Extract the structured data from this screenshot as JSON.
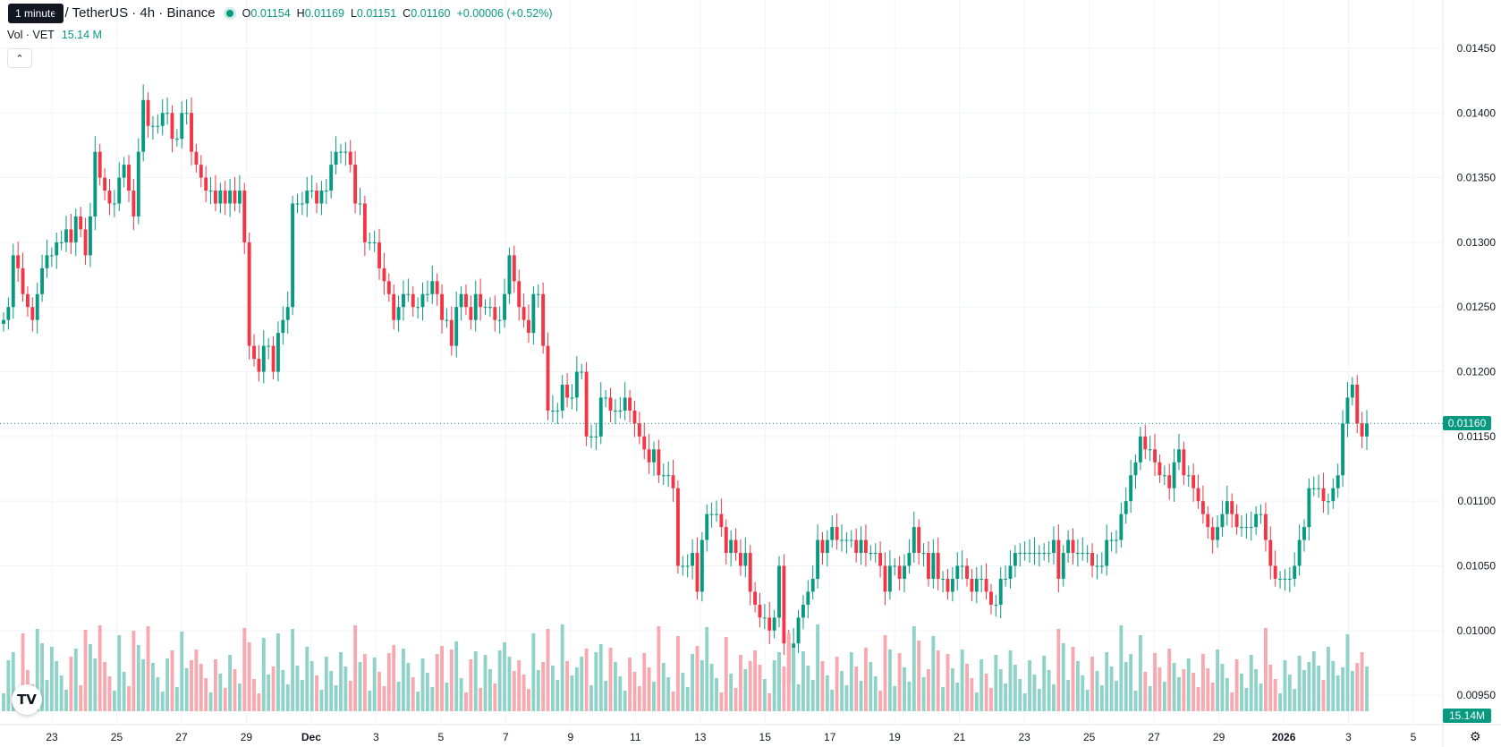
{
  "header": {
    "symbol_title": "n / TetherUS · 4h · Binance",
    "open_label": "O",
    "open": "0.01154",
    "high_label": "H",
    "high": "0.01169",
    "low_label": "L",
    "low": "0.01151",
    "close_label": "C",
    "close": "0.01160",
    "change": "+0.00006 (+0.52%)"
  },
  "tooltip": "1 minute",
  "volume_legend": {
    "label": "Vol · VET",
    "value": "15.14 M"
  },
  "collapse_icon": "chevron-up-icon",
  "logo_text": "TV",
  "settings_icon": "gear-icon",
  "last_price_tag": "0.01160",
  "last_volume_tag": "15.14M",
  "colors": {
    "up": "#089981",
    "down": "#f23645",
    "up_volume": "#8fd3c8",
    "down_volume": "#f7a9af"
  },
  "chart_data": {
    "type": "candlestick",
    "price_axis_ticks": [
      "0.01450",
      "0.01400",
      "0.01350",
      "0.01300",
      "0.01250",
      "0.01200",
      "0.01150",
      "0.01100",
      "0.01050",
      "0.01000",
      "0.00950"
    ],
    "time_axis_labels": [
      "23",
      "25",
      "27",
      "29",
      "Dec",
      "3",
      "5",
      "7",
      "9",
      "11",
      "13",
      "15",
      "17",
      "19",
      "21",
      "23",
      "25",
      "27",
      "29",
      "2026",
      "3",
      "5"
    ],
    "ylim": [
      0.0091,
      0.0147
    ],
    "last_price": 0.0116,
    "grid": true,
    "closes": [
      0.0124,
      0.0125,
      0.0129,
      0.0128,
      0.0126,
      0.0125,
      0.0124,
      0.0126,
      0.0128,
      0.0129,
      0.0129,
      0.013,
      0.013,
      0.0131,
      0.013,
      0.0132,
      0.0131,
      0.0129,
      0.0132,
      0.0137,
      0.0135,
      0.0134,
      0.0133,
      0.0133,
      0.0135,
      0.0136,
      0.0134,
      0.0132,
      0.0137,
      0.0141,
      0.0139,
      0.0139,
      0.0139,
      0.014,
      0.014,
      0.0138,
      0.0138,
      0.014,
      0.014,
      0.0137,
      0.0136,
      0.0135,
      0.0134,
      0.0134,
      0.0133,
      0.0134,
      0.0133,
      0.0134,
      0.0133,
      0.0134,
      0.013,
      0.0122,
      0.0121,
      0.012,
      0.0122,
      0.0122,
      0.012,
      0.0123,
      0.0124,
      0.0125,
      0.0133,
      0.0133,
      0.0133,
      0.0134,
      0.0134,
      0.0133,
      0.0134,
      0.0134,
      0.0136,
      0.0137,
      0.0137,
      0.0137,
      0.0136,
      0.0133,
      0.0133,
      0.013,
      0.013,
      0.013,
      0.0128,
      0.0127,
      0.0126,
      0.0124,
      0.0125,
      0.0126,
      0.0126,
      0.0125,
      0.0125,
      0.0126,
      0.0126,
      0.0127,
      0.0126,
      0.0124,
      0.0124,
      0.0122,
      0.0125,
      0.0126,
      0.0125,
      0.0124,
      0.0126,
      0.0125,
      0.0125,
      0.0125,
      0.0124,
      0.0124,
      0.0126,
      0.0129,
      0.0127,
      0.0125,
      0.0124,
      0.0123,
      0.0126,
      0.0126,
      0.0122,
      0.0117,
      0.0117,
      0.0117,
      0.0119,
      0.0118,
      0.0118,
      0.012,
      0.012,
      0.0115,
      0.0115,
      0.0115,
      0.0118,
      0.0118,
      0.0117,
      0.0117,
      0.0117,
      0.0118,
      0.0117,
      0.0116,
      0.0115,
      0.0114,
      0.0113,
      0.0114,
      0.0112,
      0.0112,
      0.0112,
      0.0111,
      0.0105,
      0.0105,
      0.0105,
      0.0106,
      0.0103,
      0.0107,
      0.0109,
      0.0109,
      0.0109,
      0.0108,
      0.0106,
      0.0107,
      0.0106,
      0.0105,
      0.0106,
      0.0103,
      0.0102,
      0.0101,
      0.0101,
      0.01,
      0.0101,
      0.0105,
      0.0099,
      0.0096,
      0.0099,
      0.0101,
      0.0102,
      0.0103,
      0.0104,
      0.0107,
      0.0106,
      0.0107,
      0.0108,
      0.0107,
      0.0107,
      0.0107,
      0.0107,
      0.0106,
      0.0107,
      0.0106,
      0.0106,
      0.0106,
      0.0105,
      0.0103,
      0.0105,
      0.0105,
      0.0104,
      0.0105,
      0.0106,
      0.0108,
      0.0106,
      0.0106,
      0.0104,
      0.0106,
      0.0104,
      0.0104,
      0.0103,
      0.0104,
      0.0105,
      0.0105,
      0.0104,
      0.0103,
      0.0104,
      0.0104,
      0.0103,
      0.0102,
      0.0102,
      0.0104,
      0.0104,
      0.0105,
      0.0106,
      0.0106,
      0.0106,
      0.0106,
      0.0106,
      0.0106,
      0.0106,
      0.0106,
      0.0107,
      0.0104,
      0.0106,
      0.0107,
      0.0106,
      0.0106,
      0.0106,
      0.0106,
      0.0105,
      0.0105,
      0.0105,
      0.0107,
      0.0107,
      0.0107,
      0.0109,
      0.011,
      0.0112,
      0.0113,
      0.0115,
      0.0114,
      0.0114,
      0.0113,
      0.0112,
      0.0112,
      0.0111,
      0.0113,
      0.0114,
      0.0112,
      0.0112,
      0.0111,
      0.011,
      0.0109,
      0.0108,
      0.0107,
      0.0108,
      0.0109,
      0.011,
      0.0109,
      0.0108,
      0.0108,
      0.0108,
      0.0108,
      0.0109,
      0.0109,
      0.0107,
      0.0105,
      0.0104,
      0.0104,
      0.0104,
      0.0104,
      0.0105,
      0.0107,
      0.0108,
      0.0111,
      0.0111,
      0.0111,
      0.011,
      0.011,
      0.0111,
      0.0112,
      0.0116,
      0.0118,
      0.0119,
      0.0116,
      0.0115,
      0.0116
    ]
  }
}
